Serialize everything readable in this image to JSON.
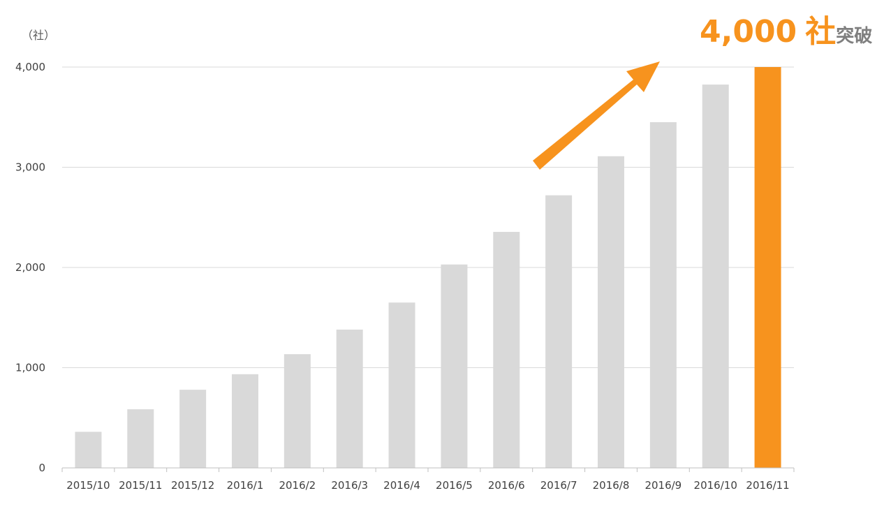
{
  "chart_data": {
    "type": "bar",
    "unit_label": "（社）",
    "categories": [
      "2015/10",
      "2015/11",
      "2015/12",
      "2016/1",
      "2016/2",
      "2016/3",
      "2016/4",
      "2016/5",
      "2016/6",
      "2016/7",
      "2016/8",
      "2016/9",
      "2016/10",
      "2016/11"
    ],
    "values": [
      360,
      585,
      780,
      935,
      1135,
      1380,
      1650,
      2030,
      2355,
      2720,
      3110,
      3450,
      3825,
      4000
    ],
    "ylim": [
      0,
      4000
    ],
    "yticks": [
      0,
      1000,
      2000,
      3000,
      4000
    ],
    "ytick_labels": [
      "0",
      "1,000",
      "2,000",
      "3,000",
      "4,000"
    ],
    "grid": true,
    "highlight_index": 13,
    "colors": {
      "bar": "#d9d9d9",
      "highlight": "#f7931e",
      "grid": "#d9d9d9",
      "axis": "#bfbfbf"
    },
    "annotation": {
      "number": "4,000",
      "unit": "社",
      "suffix": "突破",
      "number_color": "#f7931e",
      "suffix_color": "#7f7f7f",
      "arrow_icon": "up-right-arrow-icon",
      "arrow_color": "#f7931e"
    }
  }
}
